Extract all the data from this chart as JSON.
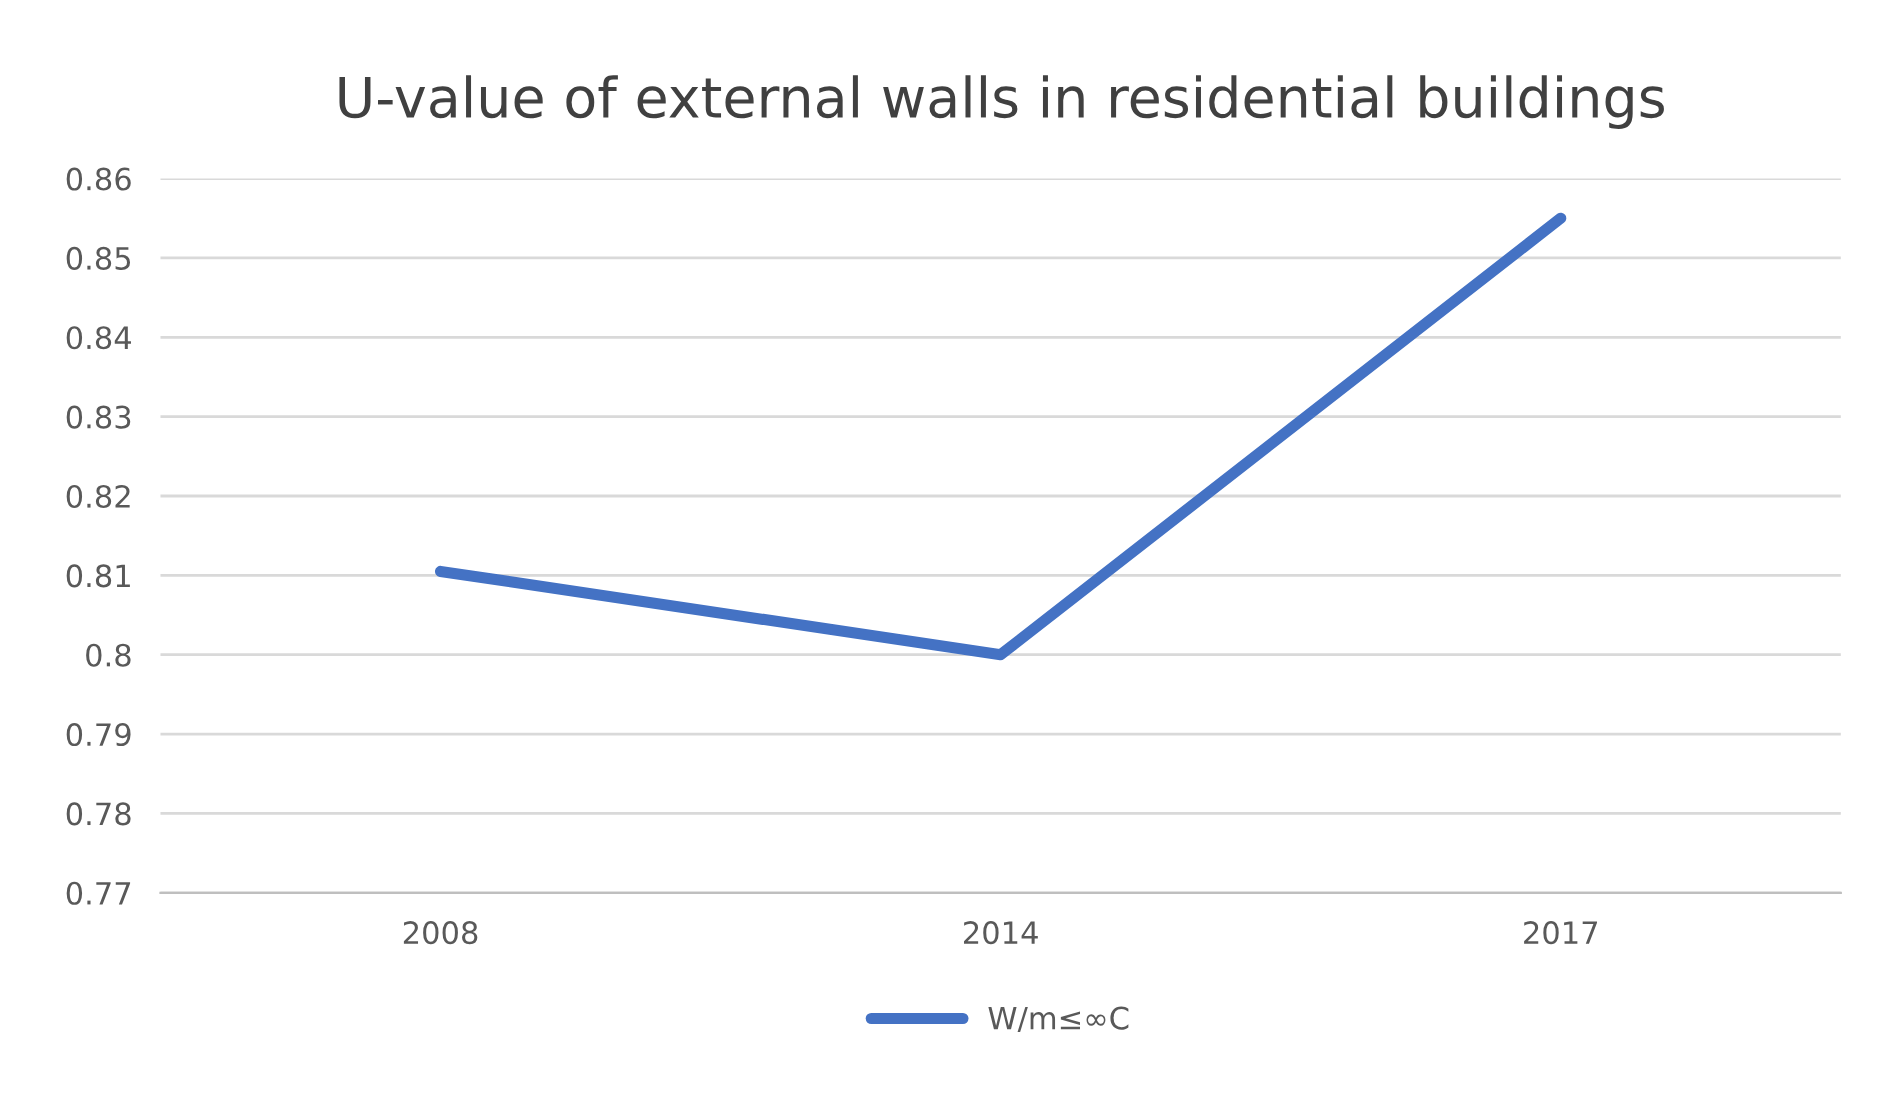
{
  "chart_data": {
    "type": "line",
    "title": "U-value of external walls in residential buildings",
    "categories": [
      "2008",
      "2014",
      "2017"
    ],
    "series": [
      {
        "name": "W/m≤∞C",
        "color": "#4472c4",
        "values": [
          0.8105,
          0.8,
          0.855
        ]
      }
    ],
    "ylim": [
      0.77,
      0.86
    ],
    "yticks": [
      0.77,
      0.78,
      0.79,
      {
        "value": 0.8,
        "label": "0.8"
      },
      0.81,
      0.82,
      0.83,
      0.84,
      0.85,
      0.86
    ],
    "grid": "y",
    "legend": "bottom",
    "marker": "none",
    "line_style": "solid"
  }
}
